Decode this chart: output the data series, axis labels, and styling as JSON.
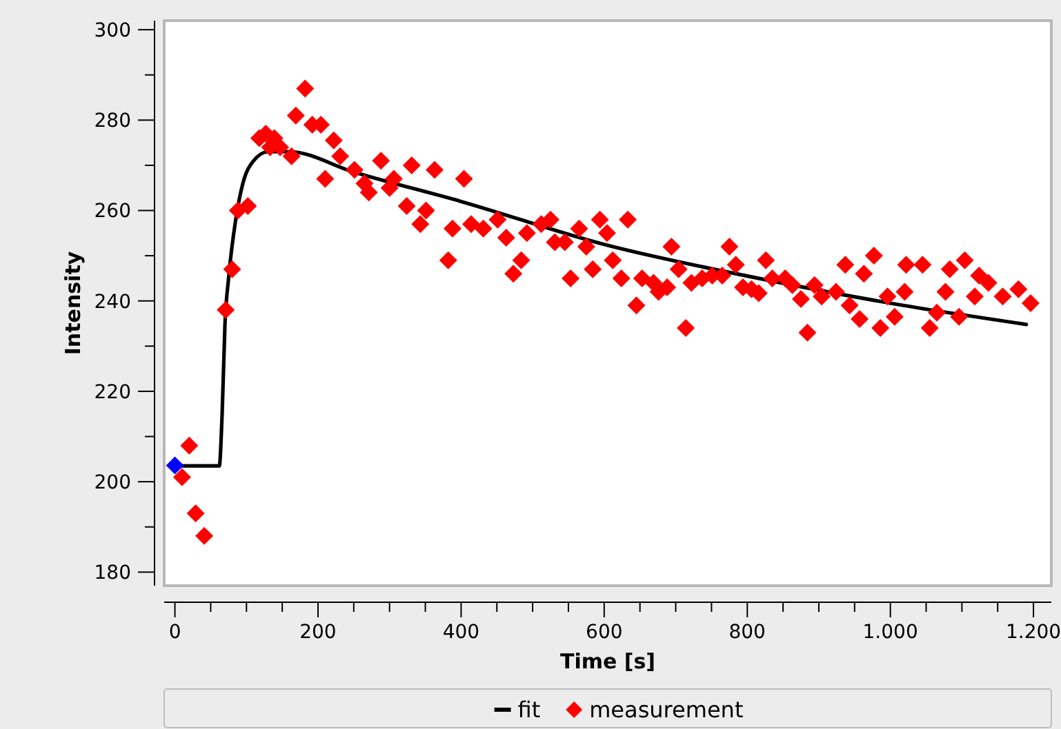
{
  "chart_data": {
    "type": "scatter",
    "xlabel": "Time [s]",
    "ylabel": "Intensity",
    "xlim": [
      -15,
      1225
    ],
    "ylim": [
      177,
      302
    ],
    "xticks": [
      0,
      {
        "value": 50,
        "label": null
      },
      200,
      {
        "value": 100,
        "label": null
      },
      {
        "value": 150,
        "label": null
      },
      {
        "value": 250,
        "label": null
      },
      {
        "value": 300,
        "label": null
      },
      {
        "value": 350,
        "label": null
      },
      400,
      {
        "value": 450,
        "label": null
      },
      {
        "value": 500,
        "label": null
      },
      {
        "value": 550,
        "label": null
      },
      600,
      {
        "value": 650,
        "label": null
      },
      {
        "value": 700,
        "label": null
      },
      {
        "value": 750,
        "label": null
      },
      800,
      {
        "value": 850,
        "label": null
      },
      {
        "value": 900,
        "label": null
      },
      {
        "value": 950,
        "label": null
      },
      {
        "value": 1000,
        "label": "1.000"
      },
      {
        "value": 1050,
        "label": null
      },
      {
        "value": 1100,
        "label": null
      },
      {
        "value": 1150,
        "label": null
      },
      {
        "value": 1200,
        "label": "1.200"
      }
    ],
    "yticks": [
      180,
      {
        "value": 190,
        "label": null
      },
      200,
      {
        "value": 210,
        "label": null
      },
      220,
      {
        "value": 230,
        "label": null
      },
      240,
      {
        "value": 250,
        "label": null
      },
      260,
      {
        "value": 270,
        "label": null
      },
      280,
      {
        "value": 290,
        "label": null
      },
      300
    ],
    "grid": false,
    "legend": "bottom",
    "series": [
      {
        "name": "fit",
        "type": "line",
        "color": "#000000",
        "marker": "none",
        "x": [
          0,
          62,
          66,
          70,
          75,
          85,
          95,
          110,
          130,
          160,
          250,
          400,
          600,
          800,
          1000,
          1190
        ],
        "values": [
          203.5,
          203.5,
          215,
          235,
          245,
          258,
          266,
          271,
          273,
          273,
          268.5,
          262,
          252.5,
          245.5,
          239.5,
          234.8
        ]
      },
      {
        "name": "measurement",
        "color": "#ff0000",
        "marker": "diamond",
        "x": [
          10,
          20,
          29,
          41,
          71,
          80,
          88,
          102,
          118,
          127,
          139,
          133,
          147,
          163,
          169,
          182,
          192,
          204,
          222,
          231,
          210,
          251,
          265,
          271,
          288,
          306,
          300,
          331,
          363,
          324,
          351,
          343,
          388,
          382,
          404,
          414,
          431,
          451,
          463,
          484,
          473,
          492,
          512,
          525,
          531,
          545,
          553,
          565,
          575,
          584,
          594,
          604,
          612,
          624,
          633,
          645,
          653,
          669,
          676,
          688,
          694,
          704,
          714,
          722,
          737,
          751,
          765,
          775,
          784,
          794,
          806,
          816,
          826,
          835,
          853,
          863,
          875,
          884,
          894,
          904,
          924,
          937,
          943,
          957,
          963,
          977,
          986,
          996,
          1006,
          1020,
          1022,
          1045,
          1055,
          1065,
          1077,
          1083,
          1096,
          1104,
          1118,
          1124,
          1137,
          1157,
          1179,
          1196
        ],
        "values": [
          201,
          208,
          193,
          188,
          238,
          247,
          260,
          261,
          276,
          277,
          276,
          274,
          274,
          272,
          281,
          287,
          279,
          279,
          275.5,
          272,
          267,
          269,
          266,
          264,
          271,
          267,
          265,
          270,
          269,
          261,
          260,
          257,
          256,
          249,
          267,
          257,
          256,
          258,
          254,
          249,
          246,
          255,
          257,
          258,
          253,
          253,
          245,
          256,
          252,
          247,
          258,
          255,
          249,
          245,
          258,
          239,
          245,
          244,
          242,
          243,
          252,
          247,
          234,
          244,
          245,
          245.6,
          245.6,
          252,
          248,
          243,
          242.6,
          241.7,
          249,
          245,
          245,
          243.5,
          240.4,
          233,
          243.5,
          241,
          242,
          248,
          239,
          236,
          246,
          250,
          234,
          241,
          236.5,
          242,
          248,
          248,
          234,
          237.4,
          242,
          247,
          236.5,
          249,
          241,
          245.6,
          244,
          241,
          242.6,
          239.5
        ]
      },
      {
        "color": "#0000ff",
        "marker": "diamond",
        "x": [
          0
        ],
        "values": [
          203.6
        ]
      }
    ]
  }
}
